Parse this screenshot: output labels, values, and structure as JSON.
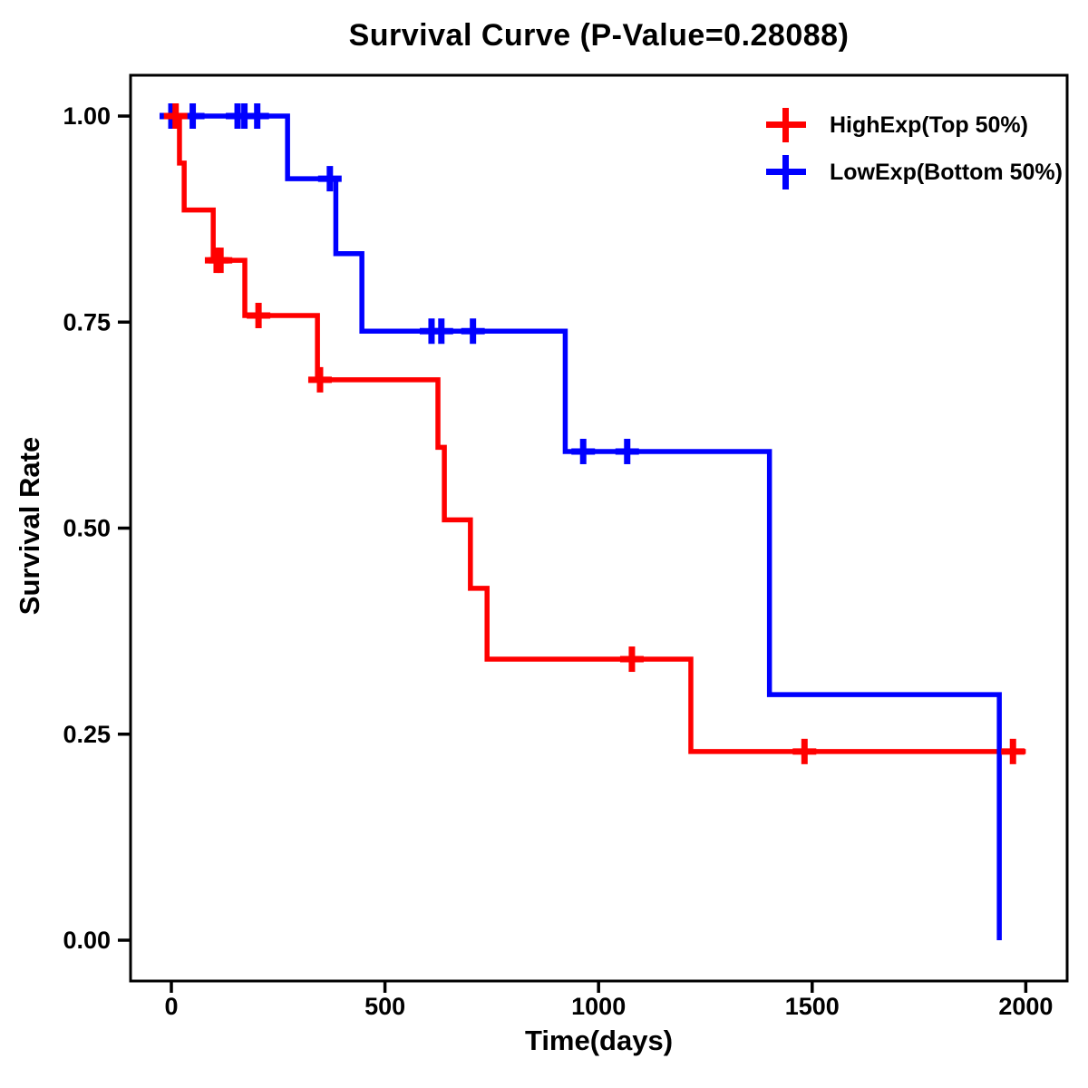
{
  "chart_data": {
    "type": "line",
    "subtype": "kaplan-meier-step-curve",
    "title": "Survival Curve (P-Value=0.28088)",
    "p_value": "0.28088",
    "xlabel": "Time(days)",
    "ylabel": "Survival Rate",
    "xticks": [
      0,
      500,
      1000,
      1500,
      2000
    ],
    "xtick_labels": [
      "0",
      "500",
      "1000",
      "1500",
      "2000"
    ],
    "yticks": [
      0.0,
      0.25,
      0.5,
      0.75,
      1.0
    ],
    "ytick_labels": [
      "0.00",
      "0.25",
      "0.50",
      "0.75",
      "1.00"
    ],
    "xlim": [
      -95,
      2095
    ],
    "ylim": [
      -0.05,
      1.05
    ],
    "grid": false,
    "legend_position": "top-right",
    "axis_color": "#000000",
    "background_color": "#ffffff",
    "series": [
      {
        "name": "HighExp(Top 50%)",
        "color": "#ff0000",
        "marker": "plus-censor-tick",
        "steps": [
          [
            0,
            1.0
          ],
          [
            19,
            0.943
          ],
          [
            30,
            0.886
          ],
          [
            98,
            0.825
          ],
          [
            172,
            0.758
          ],
          [
            342,
            0.68
          ],
          [
            624,
            0.598
          ],
          [
            639,
            0.51
          ],
          [
            700,
            0.427
          ],
          [
            739,
            0.341
          ],
          [
            1216,
            0.229
          ]
        ],
        "end_time": 2000,
        "censors": [
          [
            10,
            1.0
          ],
          [
            106,
            0.825
          ],
          [
            115,
            0.825
          ],
          [
            204,
            0.758
          ],
          [
            348,
            0.68
          ],
          [
            1078,
            0.341
          ],
          [
            1482,
            0.229
          ],
          [
            1970,
            0.229
          ]
        ]
      },
      {
        "name": "LowExp(Bottom 50%)",
        "color": "#0000ff",
        "marker": "plus-censor-tick",
        "steps": [
          [
            0,
            1.0
          ],
          [
            272,
            0.924
          ],
          [
            385,
            0.833
          ],
          [
            446,
            0.739
          ],
          [
            922,
            0.593
          ],
          [
            1400,
            0.298
          ],
          [
            1938,
            0.0
          ]
        ],
        "end_time": 1938,
        "censors": [
          [
            0,
            1.0
          ],
          [
            6,
            1.0
          ],
          [
            50,
            1.0
          ],
          [
            155,
            1.0
          ],
          [
            171,
            1.0
          ],
          [
            201,
            1.0
          ],
          [
            371,
            0.924
          ],
          [
            609,
            0.739
          ],
          [
            632,
            0.739
          ],
          [
            706,
            0.739
          ],
          [
            964,
            0.593
          ],
          [
            1067,
            0.593
          ]
        ]
      }
    ]
  }
}
